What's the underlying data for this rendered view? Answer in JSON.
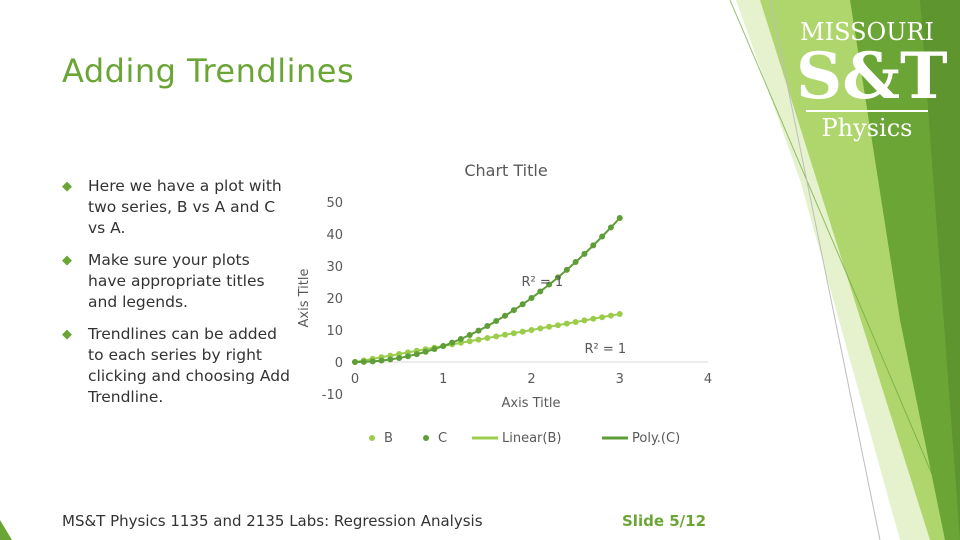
{
  "slide": {
    "title": "Adding Trendlines",
    "bullets": [
      "Here we have a plot with two series, B vs A and C vs A.",
      "Make sure your plots have appropriate titles and legends.",
      "Trendlines can be added to each series by right clicking and choosing Add Trendline."
    ],
    "bullet_glyph": "◆",
    "footer": "MS&T Physics 1135 and 2135 Labs: Regression Analysis",
    "slide_number": "Slide 5/12",
    "logo": {
      "line1": "MISSOURI",
      "line2": "S&T",
      "dept": "Physics"
    },
    "colors": {
      "accent": "#6aa536",
      "accent_light": "#9ccc4c",
      "dark_green": "#5e9d37"
    }
  },
  "chart_data": {
    "type": "scatter",
    "title": "Chart Title",
    "xlabel": "Axis Title",
    "ylabel": "Axis Title",
    "xlim": [
      0,
      4
    ],
    "ylim": [
      -10,
      50
    ],
    "x_ticks": [
      "0",
      "1",
      "2",
      "3",
      "4"
    ],
    "y_ticks": [
      "-10",
      "0",
      "10",
      "20",
      "30",
      "40",
      "50"
    ],
    "grid": false,
    "legend_position": "bottom",
    "legend": [
      "B",
      "C",
      "Linear(B)",
      "Poly.(C)"
    ],
    "series": [
      {
        "name": "B",
        "color": "#9ccc4c",
        "x": [
          0,
          0.1,
          0.2,
          0.3,
          0.4,
          0.5,
          0.6,
          0.7,
          0.8,
          0.9,
          1.0,
          1.1,
          1.2,
          1.3,
          1.4,
          1.5,
          1.6,
          1.7,
          1.8,
          1.9,
          2.0,
          2.1,
          2.2,
          2.3,
          2.4,
          2.5,
          2.6,
          2.7,
          2.8,
          2.9,
          3.0
        ],
        "y": [
          0.0,
          0.5,
          1.0,
          1.5,
          2.0,
          2.5,
          3.0,
          3.5,
          4.0,
          4.5,
          5.0,
          5.5,
          6.0,
          6.5,
          7.0,
          7.5,
          8.0,
          8.5,
          9.0,
          9.5,
          10.0,
          10.5,
          11.0,
          11.5,
          12.0,
          12.5,
          13.0,
          13.5,
          14.0,
          14.5,
          15.0
        ]
      },
      {
        "name": "C",
        "color": "#5e9d37",
        "x": [
          0,
          0.1,
          0.2,
          0.3,
          0.4,
          0.5,
          0.6,
          0.7,
          0.8,
          0.9,
          1.0,
          1.1,
          1.2,
          1.3,
          1.4,
          1.5,
          1.6,
          1.7,
          1.8,
          1.9,
          2.0,
          2.1,
          2.2,
          2.3,
          2.4,
          2.5,
          2.6,
          2.7,
          2.8,
          2.9,
          3.0
        ],
        "y": [
          0.0,
          0.05,
          0.2,
          0.45,
          0.8,
          1.25,
          1.8,
          2.45,
          3.2,
          4.05,
          5.0,
          6.05,
          7.2,
          8.45,
          9.8,
          11.25,
          12.8,
          14.45,
          16.2,
          18.05,
          20.0,
          22.05,
          24.2,
          26.45,
          28.8,
          31.25,
          33.8,
          36.45,
          39.2,
          42.05,
          45.0
        ]
      }
    ],
    "trendlines": [
      {
        "name": "Linear(B)",
        "series": "B",
        "type": "linear",
        "coeffs": [
          5,
          0
        ],
        "r2_label": "R² = 1",
        "color": "#9ccc4c"
      },
      {
        "name": "Poly.(C)",
        "series": "C",
        "type": "poly2",
        "coeffs": [
          5,
          0,
          0
        ],
        "r2_label": "R² = 1",
        "color": "#5e9d37"
      }
    ]
  }
}
